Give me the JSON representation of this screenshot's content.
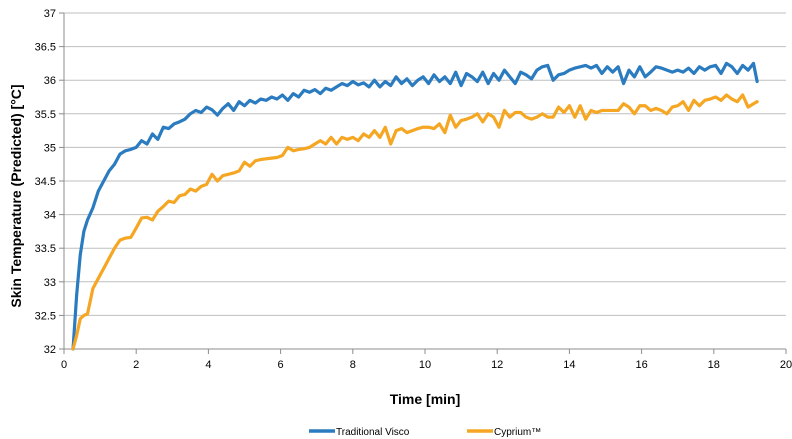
{
  "chart_data": {
    "type": "line",
    "title": "",
    "xlabel": "Time [min]",
    "ylabel": "Skin Temperature (Predicted) [°C]",
    "xlim": [
      0,
      20
    ],
    "ylim": [
      32,
      37
    ],
    "x_ticks": [
      0,
      2,
      4,
      6,
      8,
      10,
      12,
      14,
      16,
      18,
      20
    ],
    "y_ticks": [
      32,
      32.5,
      33,
      33.5,
      34,
      34.5,
      35,
      35.5,
      36,
      36.5,
      37
    ],
    "x_tick_labels": [
      "0",
      "2",
      "4",
      "6",
      "8",
      "10",
      "12",
      "14",
      "16",
      "18",
      "20"
    ],
    "y_tick_labels": [
      "32",
      "32.5",
      "33",
      "33.5",
      "34",
      "34.5",
      "35",
      "35.5",
      "36",
      "36.5",
      "37"
    ],
    "grid": "horizontal",
    "legend": "bottom",
    "series": [
      {
        "name": "Traditional Visco",
        "color": "#2a7bbf",
        "x": [
          0.25,
          0.35,
          0.45,
          0.55,
          0.65,
          0.8,
          0.95,
          1.1,
          1.25,
          1.4,
          1.55,
          1.7,
          1.85,
          2.0,
          2.15,
          2.3,
          2.45,
          2.6,
          2.75,
          2.9,
          3.05,
          3.2,
          3.35,
          3.5,
          3.65,
          3.8,
          3.95,
          4.1,
          4.25,
          4.4,
          4.55,
          4.7,
          4.85,
          5.0,
          5.15,
          5.3,
          5.45,
          5.6,
          5.75,
          5.9,
          6.05,
          6.2,
          6.35,
          6.5,
          6.65,
          6.8,
          6.95,
          7.1,
          7.25,
          7.4,
          7.55,
          7.7,
          7.85,
          8.0,
          8.15,
          8.3,
          8.45,
          8.6,
          8.75,
          8.9,
          9.05,
          9.2,
          9.35,
          9.5,
          9.65,
          9.8,
          9.95,
          10.1,
          10.25,
          10.4,
          10.55,
          10.7,
          10.85,
          11.0,
          11.15,
          11.3,
          11.45,
          11.6,
          11.75,
          11.9,
          12.05,
          12.2,
          12.35,
          12.5,
          12.65,
          12.8,
          12.95,
          13.1,
          13.25,
          13.4,
          13.55,
          13.7,
          13.85,
          14.0,
          14.15,
          14.3,
          14.45,
          14.6,
          14.75,
          14.9,
          15.05,
          15.2,
          15.35,
          15.5,
          15.65,
          15.8,
          15.95,
          16.1,
          16.25,
          16.4,
          16.55,
          16.7,
          16.85,
          17.0,
          17.15,
          17.3,
          17.45,
          17.6,
          17.75,
          17.9,
          18.05,
          18.2,
          18.35,
          18.5,
          18.65,
          18.8,
          18.95,
          19.1,
          19.2
        ],
        "y": [
          32.0,
          32.8,
          33.4,
          33.75,
          33.92,
          34.1,
          34.35,
          34.5,
          34.65,
          34.75,
          34.9,
          34.95,
          34.97,
          35.0,
          35.1,
          35.05,
          35.2,
          35.12,
          35.3,
          35.28,
          35.35,
          35.38,
          35.42,
          35.5,
          35.55,
          35.52,
          35.6,
          35.56,
          35.48,
          35.58,
          35.65,
          35.55,
          35.68,
          35.62,
          35.7,
          35.66,
          35.72,
          35.7,
          35.75,
          35.72,
          35.78,
          35.7,
          35.8,
          35.75,
          35.85,
          35.82,
          35.86,
          35.8,
          35.88,
          35.85,
          35.9,
          35.95,
          35.92,
          35.98,
          35.93,
          35.96,
          35.9,
          36.0,
          35.9,
          35.98,
          35.92,
          36.05,
          35.95,
          36.02,
          35.92,
          36.0,
          36.05,
          35.95,
          36.08,
          35.98,
          36.05,
          35.95,
          36.12,
          35.92,
          36.1,
          36.05,
          35.98,
          36.12,
          35.95,
          36.1,
          36.0,
          36.15,
          36.05,
          35.95,
          36.12,
          36.08,
          36.02,
          36.15,
          36.2,
          36.22,
          36.0,
          36.08,
          36.1,
          36.15,
          36.18,
          36.2,
          36.22,
          36.18,
          36.22,
          36.1,
          36.2,
          36.12,
          36.2,
          35.95,
          36.15,
          36.05,
          36.2,
          36.05,
          36.12,
          36.2,
          36.18,
          36.15,
          36.12,
          36.15,
          36.12,
          36.18,
          36.1,
          36.2,
          36.15,
          36.2,
          36.22,
          36.1,
          36.25,
          36.2,
          36.1,
          36.22,
          36.15,
          36.25,
          35.98
        ]
      },
      {
        "name": "Cyprium™",
        "color": "#f5a623",
        "x": [
          0.25,
          0.35,
          0.45,
          0.55,
          0.65,
          0.8,
          0.95,
          1.1,
          1.25,
          1.4,
          1.55,
          1.7,
          1.85,
          2.0,
          2.15,
          2.3,
          2.45,
          2.6,
          2.75,
          2.9,
          3.05,
          3.2,
          3.35,
          3.5,
          3.65,
          3.8,
          3.95,
          4.1,
          4.25,
          4.4,
          4.55,
          4.7,
          4.85,
          5.0,
          5.15,
          5.3,
          5.45,
          5.6,
          5.75,
          5.9,
          6.05,
          6.2,
          6.35,
          6.5,
          6.65,
          6.8,
          6.95,
          7.1,
          7.25,
          7.4,
          7.55,
          7.7,
          7.85,
          8.0,
          8.15,
          8.3,
          8.45,
          8.6,
          8.75,
          8.9,
          9.05,
          9.2,
          9.35,
          9.5,
          9.65,
          9.8,
          9.95,
          10.1,
          10.25,
          10.4,
          10.55,
          10.7,
          10.85,
          11.0,
          11.15,
          11.3,
          11.45,
          11.6,
          11.75,
          11.9,
          12.05,
          12.2,
          12.35,
          12.5,
          12.65,
          12.8,
          12.95,
          13.1,
          13.25,
          13.4,
          13.55,
          13.7,
          13.85,
          14.0,
          14.15,
          14.3,
          14.45,
          14.6,
          14.75,
          14.9,
          15.05,
          15.2,
          15.35,
          15.5,
          15.65,
          15.8,
          15.95,
          16.1,
          16.25,
          16.4,
          16.55,
          16.7,
          16.85,
          17.0,
          17.15,
          17.3,
          17.45,
          17.6,
          17.75,
          17.9,
          18.05,
          18.2,
          18.35,
          18.5,
          18.65,
          18.8,
          18.95,
          19.1,
          19.2
        ],
        "y": [
          32.0,
          32.2,
          32.45,
          32.5,
          32.52,
          32.9,
          33.05,
          33.2,
          33.35,
          33.5,
          33.62,
          33.65,
          33.66,
          33.8,
          33.95,
          33.96,
          33.92,
          34.05,
          34.12,
          34.2,
          34.18,
          34.28,
          34.3,
          34.38,
          34.35,
          34.42,
          34.45,
          34.6,
          34.5,
          34.58,
          34.6,
          34.62,
          34.65,
          34.78,
          34.72,
          34.8,
          34.82,
          34.83,
          34.84,
          34.85,
          34.88,
          35.0,
          34.95,
          34.97,
          34.98,
          35.0,
          35.05,
          35.1,
          35.05,
          35.15,
          35.05,
          35.15,
          35.12,
          35.15,
          35.1,
          35.2,
          35.15,
          35.25,
          35.15,
          35.3,
          35.05,
          35.25,
          35.28,
          35.22,
          35.25,
          35.28,
          35.3,
          35.3,
          35.28,
          35.35,
          35.22,
          35.48,
          35.3,
          35.4,
          35.42,
          35.45,
          35.5,
          35.38,
          35.5,
          35.45,
          35.3,
          35.55,
          35.45,
          35.52,
          35.52,
          35.45,
          35.42,
          35.45,
          35.5,
          35.45,
          35.45,
          35.6,
          35.52,
          35.62,
          35.45,
          35.62,
          35.42,
          35.55,
          35.52,
          35.55,
          35.55,
          35.55,
          35.55,
          35.65,
          35.6,
          35.5,
          35.62,
          35.62,
          35.55,
          35.58,
          35.55,
          35.5,
          35.6,
          35.62,
          35.68,
          35.55,
          35.7,
          35.62,
          35.7,
          35.72,
          35.75,
          35.7,
          35.78,
          35.72,
          35.68,
          35.78,
          35.6,
          35.65,
          35.68
        ]
      }
    ]
  }
}
